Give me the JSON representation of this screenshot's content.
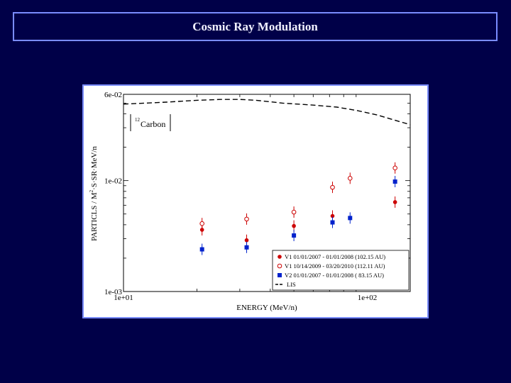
{
  "slide": {
    "title": "Cosmic Ray Modulation"
  },
  "colors": {
    "background": "#000048",
    "frame": "#7a8cff",
    "v1_2007": "#cc0000",
    "v1_2009": "#cc0000",
    "v2_2007": "#0022cc",
    "lis": "#000000"
  },
  "chart_data": {
    "type": "scatter",
    "xscale": "log",
    "yscale": "log",
    "xlim": [
      10,
      150
    ],
    "ylim": [
      0.001,
      0.06
    ],
    "xlabel": "ENERGY (MeV/n)",
    "ylabel_main": "PARTICLS / M",
    "ylabel_sup": "2",
    "ylabel_rest": "·S·SR·MeV/n",
    "xticks": [
      {
        "value": 10,
        "label": "1e+01"
      },
      {
        "value": 100,
        "label": "1e+02"
      }
    ],
    "yticks": [
      {
        "value": 0.001,
        "label": "1e-03"
      },
      {
        "value": 0.01,
        "label": "1e-02"
      },
      {
        "value": 0.06,
        "label": "6e-02"
      }
    ],
    "species_sup": "12",
    "species": "Carbon",
    "series": [
      {
        "name": "V1",
        "legend": "V1   01/01/2007 - 01/01/2008 (102.15 AU)",
        "marker": "filled-circle",
        "points": [
          [
            21,
            0.0036
          ],
          [
            32,
            0.0029
          ],
          [
            50,
            0.0039
          ],
          [
            72,
            0.0048
          ],
          [
            130,
            0.0064
          ]
        ]
      },
      {
        "name": "V1",
        "legend": "V1   10/14/2009 - 03/20/2010 (112.11 AU)",
        "marker": "open-circle",
        "points": [
          [
            21,
            0.0041
          ],
          [
            32,
            0.0045
          ],
          [
            50,
            0.0052
          ],
          [
            72,
            0.0087
          ],
          [
            85,
            0.0105
          ],
          [
            130,
            0.013
          ]
        ]
      },
      {
        "name": "V2",
        "legend": "V2   01/01/2007 - 01/01/2008 ( 83.15 AU)",
        "marker": "filled-square",
        "points": [
          [
            21,
            0.0024
          ],
          [
            32,
            0.0025
          ],
          [
            50,
            0.0032
          ],
          [
            72,
            0.0042
          ],
          [
            85,
            0.0046
          ],
          [
            130,
            0.0098
          ]
        ]
      },
      {
        "name": "LIS",
        "legend": "LIS",
        "marker": "dashed-line",
        "points": [
          [
            10,
            0.049
          ],
          [
            15,
            0.051
          ],
          [
            20,
            0.053
          ],
          [
            25,
            0.054
          ],
          [
            30,
            0.054
          ],
          [
            35,
            0.053
          ],
          [
            45,
            0.05
          ],
          [
            60,
            0.048
          ],
          [
            75,
            0.046
          ],
          [
            90,
            0.043
          ],
          [
            110,
            0.039
          ],
          [
            130,
            0.035
          ],
          [
            150,
            0.032
          ]
        ]
      }
    ]
  }
}
